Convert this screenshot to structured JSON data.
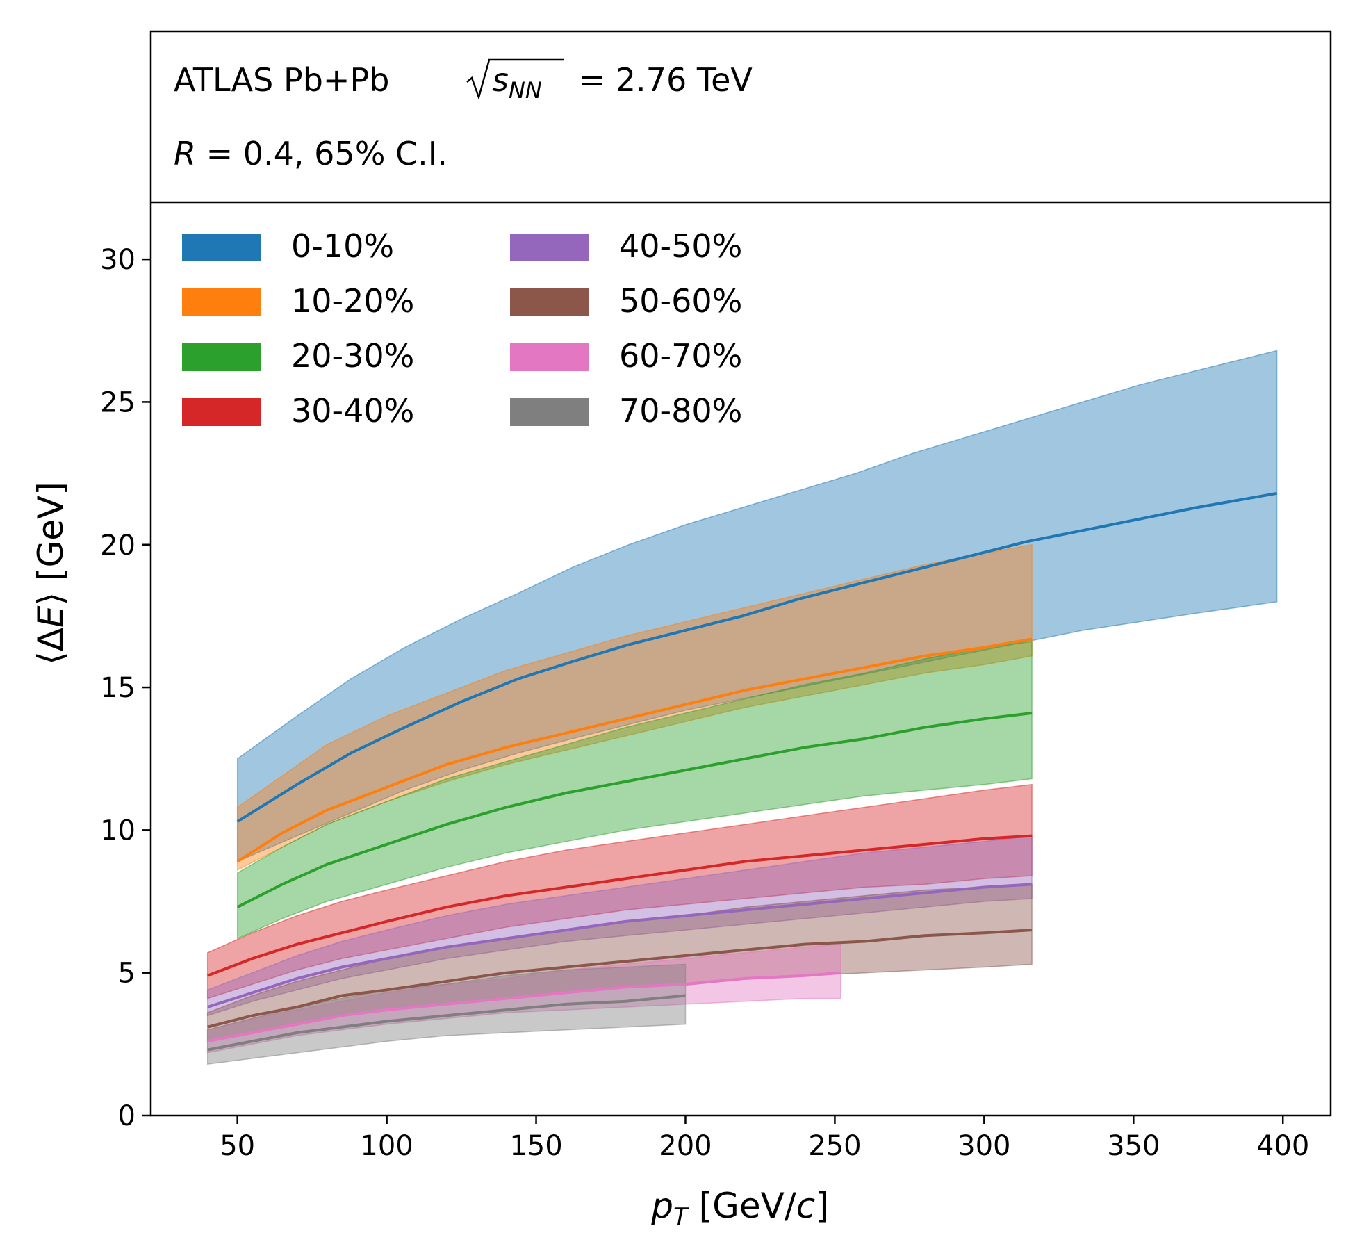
{
  "chart_data": {
    "type": "area",
    "header": {
      "line1_prefix": "ATLAS Pb+Pb ",
      "line1_sqrt_s": "s",
      "line1_sqrt_sub": "NN",
      "line1_suffix": " = 2.76 TeV",
      "line2_R": "R",
      "line2_suffix": " = 0.4, 65% C.I."
    },
    "xlabel_var": "p",
    "xlabel_sub": "T",
    "xlabel_rest": " [GeV/",
    "xlabel_c": "c",
    "xlabel_end": "]",
    "ylabel_open": "⟨Δ",
    "ylabel_E": "E",
    "ylabel_close": "⟩ [GeV]",
    "xlim": [
      21,
      416
    ],
    "ylim": [
      0,
      32
    ],
    "xticks": [
      50,
      100,
      150,
      200,
      250,
      300,
      350,
      400
    ],
    "yticks": [
      0,
      5,
      10,
      15,
      20,
      25,
      30
    ],
    "legend_position": "top-left",
    "series": [
      {
        "name": "0-10%",
        "color": "#1f77b4",
        "x": [
          50,
          70,
          88,
          106,
          125,
          144,
          162,
          181,
          200,
          219,
          238,
          257,
          276,
          295,
          314,
          333,
          352,
          371,
          398
        ],
        "y": [
          10.3,
          11.6,
          12.7,
          13.6,
          14.5,
          15.3,
          15.9,
          16.5,
          17.0,
          17.5,
          18.1,
          18.6,
          19.1,
          19.6,
          20.1,
          20.5,
          20.9,
          21.3,
          21.8
        ],
        "lower": [
          8.9,
          9.8,
          10.6,
          11.4,
          12.1,
          12.7,
          13.2,
          13.7,
          14.2,
          14.6,
          15.0,
          15.4,
          15.8,
          16.2,
          16.6,
          17.0,
          17.3,
          17.6,
          18.0
        ],
        "upper": [
          12.5,
          14.0,
          15.3,
          16.4,
          17.4,
          18.3,
          19.2,
          20.0,
          20.7,
          21.3,
          21.9,
          22.5,
          23.2,
          23.8,
          24.4,
          25.0,
          25.6,
          26.1,
          26.8
        ]
      },
      {
        "name": "10-20%",
        "color": "#ff7f0e",
        "x": [
          50,
          65,
          80,
          100,
          120,
          140,
          160,
          180,
          200,
          220,
          240,
          260,
          280,
          300,
          316
        ],
        "y": [
          8.9,
          9.9,
          10.7,
          11.5,
          12.3,
          12.9,
          13.4,
          13.9,
          14.4,
          14.9,
          15.3,
          15.7,
          16.1,
          16.4,
          16.7
        ],
        "lower": [
          8.6,
          9.4,
          10.2,
          11.0,
          11.7,
          12.3,
          12.8,
          13.3,
          13.8,
          14.3,
          14.7,
          15.1,
          15.5,
          15.8,
          16.1
        ],
        "upper": [
          10.8,
          11.9,
          13.0,
          14.0,
          14.8,
          15.6,
          16.2,
          16.8,
          17.3,
          17.8,
          18.3,
          18.8,
          19.3,
          19.7,
          20.0
        ]
      },
      {
        "name": "20-30%",
        "color": "#2ca02c",
        "x": [
          50,
          65,
          80,
          100,
          120,
          140,
          160,
          180,
          200,
          220,
          240,
          260,
          280,
          300,
          316
        ],
        "y": [
          7.3,
          8.1,
          8.8,
          9.5,
          10.2,
          10.8,
          11.3,
          11.7,
          12.1,
          12.5,
          12.9,
          13.2,
          13.6,
          13.9,
          14.1
        ],
        "lower": [
          6.2,
          6.9,
          7.5,
          8.1,
          8.7,
          9.2,
          9.6,
          10.0,
          10.3,
          10.6,
          10.9,
          11.2,
          11.4,
          11.6,
          11.8
        ],
        "upper": [
          8.5,
          9.4,
          10.2,
          11.0,
          11.8,
          12.4,
          13.0,
          13.6,
          14.1,
          14.6,
          15.1,
          15.5,
          16.0,
          16.4,
          16.6
        ]
      },
      {
        "name": "30-40%",
        "color": "#d62728",
        "x": [
          40,
          55,
          70,
          85,
          100,
          120,
          140,
          160,
          180,
          200,
          220,
          240,
          260,
          280,
          300,
          316
        ],
        "y": [
          4.9,
          5.5,
          6.0,
          6.4,
          6.8,
          7.3,
          7.7,
          8.0,
          8.3,
          8.6,
          8.9,
          9.1,
          9.3,
          9.5,
          9.7,
          9.8
        ],
        "lower": [
          4.1,
          4.6,
          5.1,
          5.5,
          5.8,
          6.2,
          6.6,
          6.9,
          7.2,
          7.4,
          7.6,
          7.8,
          8.0,
          8.1,
          8.3,
          8.4
        ],
        "upper": [
          5.7,
          6.4,
          7.0,
          7.5,
          7.9,
          8.4,
          8.9,
          9.3,
          9.6,
          9.9,
          10.2,
          10.5,
          10.8,
          11.1,
          11.4,
          11.6
        ]
      },
      {
        "name": "40-50%",
        "color": "#9467bd",
        "x": [
          40,
          55,
          70,
          85,
          100,
          120,
          140,
          160,
          180,
          200,
          220,
          240,
          260,
          280,
          300,
          316
        ],
        "y": [
          3.8,
          4.3,
          4.8,
          5.2,
          5.5,
          5.9,
          6.2,
          6.5,
          6.8,
          7.0,
          7.2,
          7.4,
          7.6,
          7.8,
          8.0,
          8.1
        ],
        "lower": [
          3.5,
          4.0,
          4.4,
          4.8,
          5.1,
          5.5,
          5.8,
          6.1,
          6.3,
          6.5,
          6.7,
          6.9,
          7.1,
          7.3,
          7.5,
          7.6
        ],
        "upper": [
          4.4,
          5.0,
          5.6,
          6.1,
          6.5,
          7.0,
          7.4,
          7.7,
          8.0,
          8.3,
          8.6,
          8.9,
          9.2,
          9.4,
          9.6,
          9.8
        ]
      },
      {
        "name": "50-60%",
        "color": "#8c564b",
        "x": [
          40,
          55,
          70,
          85,
          100,
          120,
          140,
          160,
          180,
          200,
          220,
          240,
          260,
          280,
          300,
          316
        ],
        "y": [
          3.1,
          3.5,
          3.8,
          4.2,
          4.4,
          4.7,
          5.0,
          5.2,
          5.4,
          5.6,
          5.8,
          6.0,
          6.1,
          6.3,
          6.4,
          6.5
        ],
        "lower": [
          2.6,
          2.9,
          3.2,
          3.5,
          3.7,
          3.9,
          4.1,
          4.3,
          4.5,
          4.6,
          4.8,
          4.9,
          5.0,
          5.1,
          5.2,
          5.3
        ],
        "upper": [
          3.6,
          4.2,
          4.7,
          5.1,
          5.5,
          5.9,
          6.2,
          6.5,
          6.8,
          7.0,
          7.3,
          7.5,
          7.7,
          7.9,
          8.0,
          8.1
        ]
      },
      {
        "name": "60-70%",
        "color": "#e377c2",
        "x": [
          40,
          55,
          70,
          85,
          100,
          120,
          140,
          160,
          180,
          200,
          220,
          240,
          252
        ],
        "y": [
          2.6,
          2.9,
          3.2,
          3.5,
          3.7,
          3.9,
          4.1,
          4.3,
          4.5,
          4.6,
          4.8,
          4.9,
          5.0
        ],
        "lower": [
          2.2,
          2.5,
          2.8,
          3.0,
          3.2,
          3.4,
          3.6,
          3.7,
          3.8,
          3.9,
          4.0,
          4.1,
          4.1
        ],
        "upper": [
          3.0,
          3.4,
          3.7,
          4.0,
          4.3,
          4.6,
          4.8,
          5.1,
          5.3,
          5.5,
          5.7,
          5.9,
          6.0
        ]
      },
      {
        "name": "70-80%",
        "color": "#7f7f7f",
        "x": [
          40,
          55,
          70,
          85,
          100,
          120,
          140,
          160,
          180,
          200
        ],
        "y": [
          2.3,
          2.6,
          2.9,
          3.1,
          3.3,
          3.5,
          3.7,
          3.9,
          4.0,
          4.2
        ],
        "lower": [
          1.8,
          2.0,
          2.2,
          2.4,
          2.6,
          2.8,
          2.9,
          3.0,
          3.1,
          3.2
        ],
        "upper": [
          3.0,
          3.4,
          3.8,
          4.1,
          4.4,
          4.6,
          4.9,
          5.1,
          5.2,
          5.3
        ]
      }
    ]
  }
}
